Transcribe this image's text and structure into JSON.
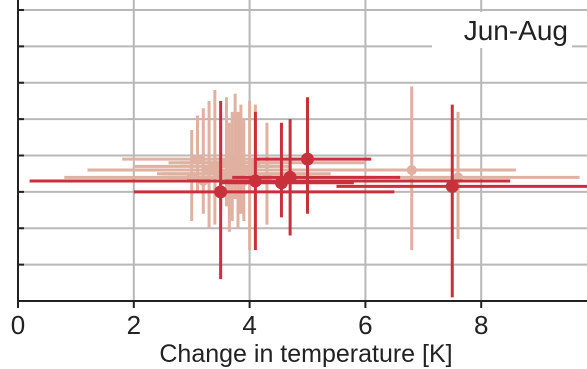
{
  "chart_data": {
    "type": "scatter",
    "title": "Jun-Aug",
    "xlabel": "Change in temperature [K]",
    "ylabel": "",
    "xlim": [
      0,
      10
    ],
    "ylim": [
      0,
      8
    ],
    "x_ticks": [
      0,
      2,
      4,
      6,
      8
    ],
    "x_tick_labels": [
      "0",
      "2",
      "4",
      "6",
      "8"
    ],
    "y_ticks": [
      0,
      1,
      2,
      3,
      4,
      5,
      6,
      7,
      8
    ],
    "grid": true,
    "colors": {
      "light_series": "#e0b0a0",
      "dark_series": "#c8303c",
      "grid": "#b8b8b8",
      "axis": "#222222"
    },
    "series": [
      {
        "color_key": "light_series",
        "points": [
          {
            "x": 3.0,
            "y": 3.4,
            "xerr": [
              0.8,
              5.2
            ],
            "yerr": [
              2.2,
              4.7
            ]
          },
          {
            "x": 3.1,
            "y": 3.9,
            "xerr": [
              1.8,
              5.0
            ],
            "yerr": [
              3.0,
              5.1
            ]
          },
          {
            "x": 3.2,
            "y": 3.3,
            "xerr": [
              2.2,
              4.6
            ],
            "yerr": [
              2.4,
              5.3
            ]
          },
          {
            "x": 3.3,
            "y": 3.6,
            "xerr": [
              1.2,
              6.5
            ],
            "yerr": [
              2.0,
              5.5
            ]
          },
          {
            "x": 3.4,
            "y": 3.7,
            "xerr": [
              2.0,
              4.7
            ],
            "yerr": [
              2.1,
              5.8
            ]
          },
          {
            "x": 3.5,
            "y": 3.5,
            "xerr": [
              2.5,
              5.0
            ],
            "yerr": [
              2.5,
              5.0
            ]
          },
          {
            "x": 3.6,
            "y": 3.8,
            "xerr": [
              2.8,
              4.6
            ],
            "yerr": [
              2.6,
              5.6
            ]
          },
          {
            "x": 3.65,
            "y": 3.4,
            "xerr": [
              2.6,
              4.4
            ],
            "yerr": [
              1.9,
              4.9
            ]
          },
          {
            "x": 3.7,
            "y": 3.6,
            "xerr": [
              3.2,
              4.5
            ],
            "yerr": [
              2.2,
              5.2
            ]
          },
          {
            "x": 3.75,
            "y": 3.9,
            "xerr": [
              3.0,
              4.8
            ],
            "yerr": [
              2.8,
              5.7
            ]
          },
          {
            "x": 3.8,
            "y": 3.5,
            "xerr": [
              2.4,
              5.4
            ],
            "yerr": [
              2.0,
              5.2
            ]
          },
          {
            "x": 3.85,
            "y": 3.7,
            "xerr": [
              3.3,
              4.4
            ],
            "yerr": [
              2.4,
              5.4
            ]
          },
          {
            "x": 3.9,
            "y": 3.3,
            "xerr": [
              2.7,
              5.2
            ],
            "yerr": [
              2.2,
              5.0
            ]
          },
          {
            "x": 4.0,
            "y": 3.6,
            "xerr": [
              3.5,
              4.6
            ],
            "yerr": [
              1.4,
              5.5
            ]
          },
          {
            "x": 4.1,
            "y": 3.8,
            "xerr": [
              2.6,
              6.0
            ],
            "yerr": [
              2.8,
              5.4
            ]
          },
          {
            "x": 4.3,
            "y": 3.4,
            "xerr": [
              3.0,
              6.2
            ],
            "yerr": [
              2.1,
              4.9
            ]
          },
          {
            "x": 6.8,
            "y": 3.6,
            "xerr": [
              5.4,
              8.6
            ],
            "yerr": [
              1.4,
              5.9
            ]
          },
          {
            "x": 7.6,
            "y": 3.4,
            "xerr": [
              6.5,
              9.7
            ],
            "yerr": [
              1.7,
              5.2
            ]
          }
        ]
      },
      {
        "color_key": "dark_series",
        "points": [
          {
            "x": 3.5,
            "y": 3.0,
            "xerr": [
              2.0,
              6.5
            ],
            "yerr": [
              0.6,
              5.5
            ]
          },
          {
            "x": 4.1,
            "y": 3.3,
            "xerr": [
              0.2,
              8.5
            ],
            "yerr": [
              1.4,
              5.2
            ]
          },
          {
            "x": 4.55,
            "y": 3.25,
            "xerr": [
              3.5,
              5.8
            ],
            "yerr": [
              2.3,
              4.9
            ]
          },
          {
            "x": 4.7,
            "y": 3.4,
            "xerr": [
              3.7,
              6.6
            ],
            "yerr": [
              1.8,
              5.0
            ]
          },
          {
            "x": 5.0,
            "y": 3.9,
            "xerr": [
              4.1,
              6.1
            ],
            "yerr": [
              2.4,
              5.6
            ]
          },
          {
            "x": 7.5,
            "y": 3.15,
            "xerr": [
              5.5,
              10.0
            ],
            "yerr": [
              0.1,
              5.4
            ]
          }
        ]
      }
    ]
  }
}
